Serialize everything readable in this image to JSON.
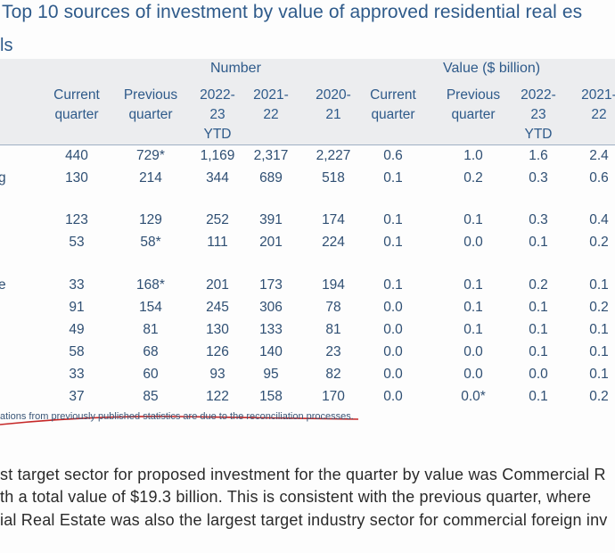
{
  "title": "Top 10 sources of investment by value of approved residential real es",
  "subtitle": "ls",
  "groups": {
    "number": "Number",
    "value": "Value ($ billion)"
  },
  "columns": [
    "Current\nquarter",
    "Previous\nquarter",
    "2022-\n23\nYTD",
    "2021-\n22",
    "2020-\n21",
    "Current\nquarter",
    "Previous\nquarter",
    "2022-\n23\nYTD",
    "2021-\n22"
  ],
  "rows": [
    {
      "label": "",
      "cells": [
        "440",
        "729*",
        "1,169",
        "2,317",
        "2,227",
        "0.6",
        "1.0",
        "1.6",
        "2.4"
      ]
    },
    {
      "label": "g",
      "cells": [
        "130",
        "214",
        "344",
        "689",
        "518",
        "0.1",
        "0.2",
        "0.3",
        "0.6"
      ]
    },
    {
      "label": "",
      "cells": [
        "123",
        "129",
        "252",
        "391",
        "174",
        "0.1",
        "0.1",
        "0.3",
        "0.4"
      ]
    },
    {
      "label": "",
      "cells": [
        "53",
        "58*",
        "111",
        "201",
        "224",
        "0.1",
        "0.0",
        "0.1",
        "0.2"
      ]
    },
    {
      "label": "e",
      "cells": [
        "33",
        "168*",
        "201",
        "173",
        "194",
        "0.1",
        "0.1",
        "0.2",
        "0.1"
      ]
    },
    {
      "label": "",
      "cells": [
        "91",
        "154",
        "245",
        "306",
        "78",
        "0.0",
        "0.1",
        "0.1",
        "0.2"
      ]
    },
    {
      "label": "",
      "cells": [
        "49",
        "81",
        "130",
        "133",
        "81",
        "0.0",
        "0.1",
        "0.1",
        "0.1"
      ]
    },
    {
      "label": "",
      "cells": [
        "58",
        "68",
        "126",
        "140",
        "23",
        "0.0",
        "0.0",
        "0.1",
        "0.1"
      ]
    },
    {
      "label": "",
      "cells": [
        "33",
        "60",
        "93",
        "95",
        "82",
        "0.0",
        "0.0",
        "0.0",
        "0.1"
      ]
    },
    {
      "label": "",
      "cells": [
        "37",
        "85",
        "122",
        "158",
        "170",
        "0.0",
        "0.0*",
        "0.1",
        "0.2"
      ]
    }
  ],
  "footnote": "ations from previously published statistics are due to the reconciliation processes.",
  "paragraph": [
    "st target sector for proposed investment for the quarter by value was Commercial R",
    "th a total value of $19.3 billion. This is consistent with the previous quarter, where",
    "ial Real Estate was also the largest target industry sector for commercial foreign inv"
  ],
  "colors": {
    "header_text": "#2e5a8a",
    "header_band": "#ecedef",
    "annotation_red": "#c62828"
  }
}
